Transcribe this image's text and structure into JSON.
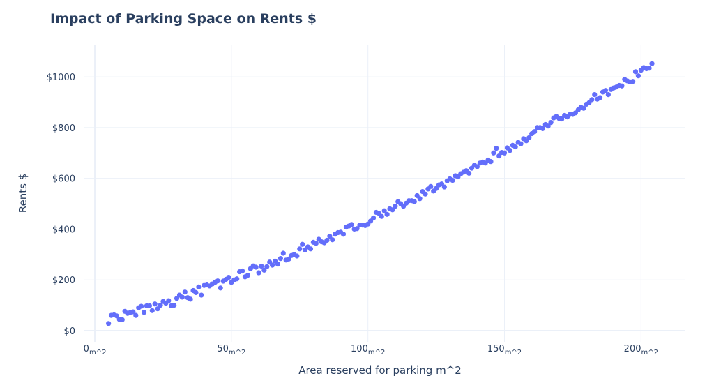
{
  "chart_data": {
    "type": "scatter",
    "title": "Impact of Parking Space on Rents $",
    "x_label": "Area reserved for parking m^2",
    "y_label": "Rents $",
    "x_tick_suffix": "m^2",
    "y_tick_prefix": "$",
    "xlim": [
      -4.1,
      216
    ],
    "ylim": [
      -44,
      1124
    ],
    "xticks": [
      0,
      50,
      100,
      150,
      200
    ],
    "yticks": [
      0,
      200,
      400,
      600,
      800,
      1000
    ],
    "grid": true,
    "color": "#636efa",
    "x": [
      5,
      6,
      7,
      8,
      9,
      10,
      11,
      12,
      13,
      14,
      15,
      16,
      17,
      18,
      19,
      20,
      21,
      22,
      23,
      24,
      25,
      26,
      27,
      28,
      29,
      30,
      31,
      32,
      33,
      34,
      35,
      36,
      37,
      38,
      39,
      40,
      41,
      42,
      43,
      44,
      45,
      46,
      47,
      48,
      49,
      50,
      51,
      52,
      53,
      54,
      55,
      56,
      57,
      58,
      59,
      60,
      61,
      62,
      63,
      64,
      65,
      66,
      67,
      68,
      69,
      70,
      71,
      72,
      73,
      74,
      75,
      76,
      77,
      78,
      79,
      80,
      81,
      82,
      83,
      84,
      85,
      86,
      87,
      88,
      89,
      90,
      91,
      92,
      93,
      94,
      95,
      96,
      97,
      98,
      99,
      100,
      101,
      102,
      103,
      104,
      105,
      106,
      107,
      108,
      109,
      110,
      111,
      112,
      113,
      114,
      115,
      116,
      117,
      118,
      119,
      120,
      121,
      122,
      123,
      124,
      125,
      126,
      127,
      128,
      129,
      130,
      131,
      132,
      133,
      134,
      135,
      136,
      137,
      138,
      139,
      140,
      141,
      142,
      143,
      144,
      145,
      146,
      147,
      148,
      149,
      150,
      151,
      152,
      153,
      154,
      155,
      156,
      157,
      158,
      159,
      160,
      161,
      162,
      163,
      164,
      165,
      166,
      167,
      168,
      169,
      170,
      171,
      172,
      173,
      174,
      175,
      176,
      177,
      178,
      179,
      180,
      181,
      182,
      183,
      184,
      185,
      186,
      187,
      188,
      189,
      190,
      191,
      192,
      193,
      194,
      195,
      196,
      197,
      198,
      199,
      200,
      201,
      202,
      203,
      204
    ],
    "values": [
      28,
      60,
      62,
      58,
      44,
      43,
      76,
      68,
      72,
      74,
      60,
      90,
      96,
      72,
      98,
      98,
      79,
      105,
      86,
      100,
      115,
      108,
      118,
      98,
      100,
      127,
      140,
      132,
      152,
      130,
      124,
      158,
      150,
      172,
      140,
      178,
      180,
      176,
      184,
      190,
      196,
      168,
      195,
      202,
      210,
      190,
      200,
      204,
      232,
      235,
      212,
      218,
      244,
      255,
      250,
      228,
      254,
      238,
      252,
      270,
      258,
      274,
      262,
      284,
      305,
      278,
      282,
      296,
      300,
      294,
      322,
      340,
      318,
      330,
      322,
      348,
      344,
      360,
      350,
      346,
      356,
      372,
      358,
      380,
      386,
      388,
      380,
      408,
      412,
      418,
      400,
      402,
      416,
      416,
      414,
      420,
      432,
      444,
      466,
      462,
      450,
      472,
      458,
      480,
      476,
      490,
      508,
      500,
      490,
      502,
      512,
      512,
      508,
      532,
      520,
      548,
      538,
      558,
      568,
      550,
      560,
      574,
      578,
      566,
      590,
      598,
      592,
      610,
      606,
      618,
      624,
      630,
      620,
      640,
      652,
      646,
      660,
      664,
      660,
      672,
      666,
      700,
      718,
      688,
      702,
      700,
      720,
      710,
      730,
      724,
      742,
      736,
      756,
      748,
      760,
      776,
      784,
      800,
      800,
      796,
      812,
      806,
      820,
      838,
      844,
      836,
      834,
      848,
      842,
      852,
      852,
      858,
      870,
      880,
      876,
      892,
      898,
      910,
      930,
      912,
      918,
      940,
      946,
      930,
      950,
      956,
      960,
      966,
      964,
      990,
      984,
      980,
      982,
      1020,
      1004,
      1026,
      1036,
      1032,
      1034,
      1052
    ]
  }
}
